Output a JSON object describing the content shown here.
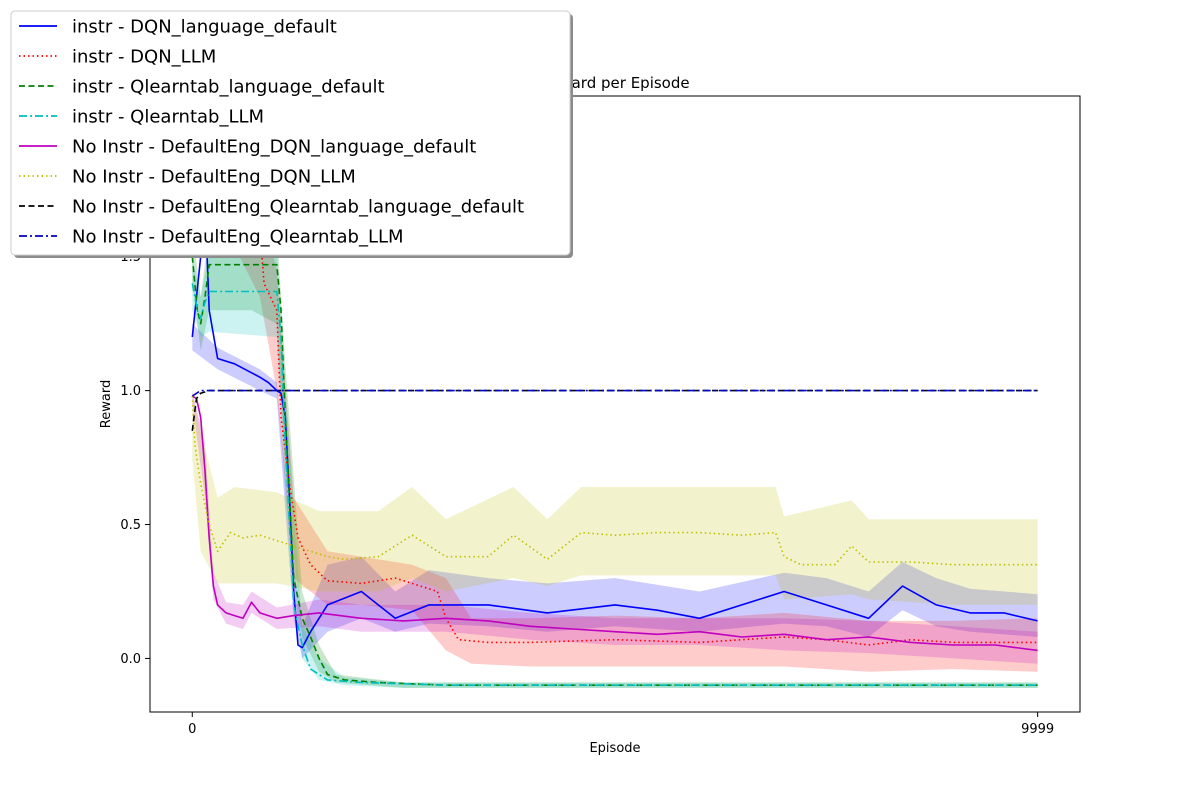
{
  "chart_data": {
    "type": "line",
    "title": "Reward per Episode",
    "xlabel": "Episode",
    "ylabel": "Reward",
    "xlim": [
      -500,
      10500
    ],
    "ylim": [
      -0.2,
      2.1
    ],
    "x_ticks": [
      0,
      9999
    ],
    "y_ticks": [
      0.0,
      0.5,
      1.0,
      1.5
    ],
    "y_tick_labels": [
      "0.0",
      "0.5",
      "1.0",
      "1.5"
    ],
    "grid": false,
    "legend_position": "top-left",
    "series": [
      {
        "name": "instr - DQN_language_default",
        "color": "#0000ff",
        "dash": "solid",
        "points": [
          [
            0,
            1.2
          ],
          [
            100,
            1.5
          ],
          [
            150,
            1.7
          ],
          [
            200,
            1.3
          ],
          [
            300,
            1.12
          ],
          [
            500,
            1.1
          ],
          [
            800,
            1.05
          ],
          [
            900,
            1.03
          ],
          [
            1000,
            1.0
          ],
          [
            1050,
            0.99
          ],
          [
            1100,
            0.9
          ],
          [
            1150,
            0.6
          ],
          [
            1200,
            0.25
          ],
          [
            1250,
            0.05
          ],
          [
            1300,
            0.04
          ],
          [
            1400,
            0.1
          ],
          [
            1600,
            0.2
          ],
          [
            2000,
            0.25
          ],
          [
            2400,
            0.15
          ],
          [
            2800,
            0.2
          ],
          [
            3500,
            0.2
          ],
          [
            4200,
            0.17
          ],
          [
            5000,
            0.2
          ],
          [
            5500,
            0.18
          ],
          [
            6000,
            0.15
          ],
          [
            6500,
            0.2
          ],
          [
            7000,
            0.25
          ],
          [
            7500,
            0.2
          ],
          [
            8000,
            0.15
          ],
          [
            8400,
            0.27
          ],
          [
            8800,
            0.2
          ],
          [
            9200,
            0.17
          ],
          [
            9600,
            0.17
          ],
          [
            9999,
            0.14
          ]
        ],
        "band": [
          [
            0,
            1.15,
            1.25
          ],
          [
            300,
            1.08,
            1.16
          ],
          [
            800,
            1.0,
            1.08
          ],
          [
            1000,
            0.97,
            1.03
          ],
          [
            1200,
            0.15,
            0.35
          ],
          [
            1300,
            0.0,
            0.12
          ],
          [
            1600,
            0.1,
            0.35
          ],
          [
            2000,
            0.15,
            0.38
          ],
          [
            2400,
            0.1,
            0.25
          ],
          [
            2800,
            0.13,
            0.33
          ],
          [
            3500,
            0.12,
            0.3
          ],
          [
            4200,
            0.1,
            0.28
          ],
          [
            5000,
            0.12,
            0.3
          ],
          [
            6000,
            0.1,
            0.25
          ],
          [
            7000,
            0.13,
            0.32
          ],
          [
            7500,
            0.12,
            0.3
          ],
          [
            8000,
            0.08,
            0.25
          ],
          [
            8400,
            0.18,
            0.36
          ],
          [
            8800,
            0.12,
            0.3
          ],
          [
            9200,
            0.1,
            0.26
          ],
          [
            9999,
            0.08,
            0.24
          ]
        ]
      },
      {
        "name": "instr - DQN_LLM",
        "color": "#ff0000",
        "dash": "dotted",
        "points": [
          [
            0,
            1.9
          ],
          [
            500,
            1.85
          ],
          [
            800,
            1.6
          ],
          [
            850,
            1.4
          ],
          [
            1000,
            1.3
          ],
          [
            1050,
            0.9
          ],
          [
            1150,
            0.65
          ],
          [
            1250,
            0.45
          ],
          [
            1400,
            0.35
          ],
          [
            1600,
            0.29
          ],
          [
            2000,
            0.28
          ],
          [
            2400,
            0.3
          ],
          [
            2600,
            0.28
          ],
          [
            2900,
            0.25
          ],
          [
            3000,
            0.15
          ],
          [
            3150,
            0.07
          ],
          [
            3500,
            0.06
          ],
          [
            4000,
            0.06
          ],
          [
            5000,
            0.07
          ],
          [
            6000,
            0.06
          ],
          [
            7000,
            0.08
          ],
          [
            7500,
            0.07
          ],
          [
            8000,
            0.05
          ],
          [
            8500,
            0.07
          ],
          [
            9000,
            0.06
          ],
          [
            9999,
            0.06
          ]
        ],
        "band": [
          [
            0,
            1.85,
            1.95
          ],
          [
            800,
            1.35,
            1.7
          ],
          [
            1000,
            1.0,
            1.45
          ],
          [
            1200,
            0.3,
            0.6
          ],
          [
            1600,
            0.2,
            0.4
          ],
          [
            2000,
            0.2,
            0.38
          ],
          [
            2600,
            0.18,
            0.35
          ],
          [
            3000,
            0.03,
            0.3
          ],
          [
            3300,
            -0.02,
            0.15
          ],
          [
            4000,
            -0.03,
            0.15
          ],
          [
            5000,
            -0.03,
            0.16
          ],
          [
            6000,
            -0.03,
            0.15
          ],
          [
            7000,
            -0.03,
            0.17
          ],
          [
            8000,
            -0.05,
            0.14
          ],
          [
            9000,
            -0.04,
            0.14
          ],
          [
            9999,
            -0.05,
            0.15
          ]
        ]
      },
      {
        "name": "instr - Qlearntab_language_default",
        "color": "#008000",
        "dash": "dashed",
        "points": [
          [
            0,
            1.5
          ],
          [
            60,
            1.3
          ],
          [
            100,
            1.25
          ],
          [
            150,
            1.35
          ],
          [
            200,
            1.47
          ],
          [
            400,
            1.47
          ],
          [
            700,
            1.47
          ],
          [
            1000,
            1.47
          ],
          [
            1050,
            1.3
          ],
          [
            1100,
            0.9
          ],
          [
            1200,
            0.3
          ],
          [
            1300,
            0.15
          ],
          [
            1400,
            0.08
          ],
          [
            1500,
            0.0
          ],
          [
            1600,
            -0.06
          ],
          [
            1800,
            -0.08
          ],
          [
            2200,
            -0.09
          ],
          [
            3000,
            -0.1
          ],
          [
            5000,
            -0.1
          ],
          [
            7000,
            -0.1
          ],
          [
            9999,
            -0.1
          ]
        ],
        "band": [
          [
            0,
            1.4,
            1.6
          ],
          [
            100,
            1.15,
            1.35
          ],
          [
            200,
            1.3,
            1.6
          ],
          [
            700,
            1.3,
            1.6
          ],
          [
            1000,
            1.25,
            1.6
          ],
          [
            1100,
            0.7,
            1.1
          ],
          [
            1300,
            0.08,
            0.25
          ],
          [
            1500,
            -0.05,
            0.05
          ],
          [
            1700,
            -0.09,
            -0.06
          ],
          [
            2500,
            -0.11,
            -0.09
          ],
          [
            9999,
            -0.11,
            -0.09
          ]
        ]
      },
      {
        "name": "instr - Qlearntab_LLM",
        "color": "#00bfbf",
        "dash": "dashdot",
        "points": [
          [
            0,
            1.4
          ],
          [
            60,
            1.3
          ],
          [
            100,
            1.27
          ],
          [
            150,
            1.33
          ],
          [
            200,
            1.37
          ],
          [
            500,
            1.37
          ],
          [
            1000,
            1.37
          ],
          [
            1050,
            1.2
          ],
          [
            1100,
            0.8
          ],
          [
            1200,
            0.2
          ],
          [
            1300,
            0.05
          ],
          [
            1400,
            -0.04
          ],
          [
            1600,
            -0.08
          ],
          [
            2000,
            -0.09
          ],
          [
            3000,
            -0.1
          ],
          [
            5000,
            -0.1
          ],
          [
            9999,
            -0.1
          ]
        ],
        "band": [
          [
            0,
            1.3,
            1.5
          ],
          [
            100,
            1.2,
            1.35
          ],
          [
            200,
            1.22,
            1.52
          ],
          [
            1000,
            1.2,
            1.52
          ],
          [
            1100,
            0.6,
            1.0
          ],
          [
            1300,
            0.0,
            0.12
          ],
          [
            1500,
            -0.08,
            0.0
          ],
          [
            1800,
            -0.1,
            -0.07
          ],
          [
            2500,
            -0.11,
            -0.09
          ],
          [
            9999,
            -0.11,
            -0.09
          ]
        ]
      },
      {
        "name": "No Instr - DefaultEng_DQN_language_default",
        "color": "#bf00bf",
        "dash": "solid",
        "points": [
          [
            0,
            0.98
          ],
          [
            50,
            0.97
          ],
          [
            100,
            0.9
          ],
          [
            150,
            0.7
          ],
          [
            200,
            0.45
          ],
          [
            250,
            0.27
          ],
          [
            300,
            0.2
          ],
          [
            400,
            0.17
          ],
          [
            500,
            0.16
          ],
          [
            600,
            0.15
          ],
          [
            700,
            0.21
          ],
          [
            800,
            0.17
          ],
          [
            900,
            0.16
          ],
          [
            1000,
            0.15
          ],
          [
            1200,
            0.16
          ],
          [
            1500,
            0.17
          ],
          [
            2000,
            0.15
          ],
          [
            2500,
            0.14
          ],
          [
            3000,
            0.15
          ],
          [
            3500,
            0.14
          ],
          [
            4000,
            0.12
          ],
          [
            4500,
            0.11
          ],
          [
            5000,
            0.1
          ],
          [
            5500,
            0.09
          ],
          [
            6000,
            0.1
          ],
          [
            6500,
            0.08
          ],
          [
            7000,
            0.09
          ],
          [
            7500,
            0.07
          ],
          [
            8000,
            0.08
          ],
          [
            8500,
            0.06
          ],
          [
            9000,
            0.05
          ],
          [
            9500,
            0.05
          ],
          [
            9999,
            0.03
          ]
        ],
        "band": [
          [
            0,
            0.95,
            1.0
          ],
          [
            150,
            0.6,
            0.8
          ],
          [
            250,
            0.22,
            0.32
          ],
          [
            400,
            0.13,
            0.21
          ],
          [
            600,
            0.11,
            0.2
          ],
          [
            700,
            0.17,
            0.25
          ],
          [
            1000,
            0.11,
            0.19
          ],
          [
            1500,
            0.12,
            0.22
          ],
          [
            2000,
            0.1,
            0.2
          ],
          [
            3000,
            0.1,
            0.2
          ],
          [
            4000,
            0.07,
            0.17
          ],
          [
            5000,
            0.05,
            0.15
          ],
          [
            6000,
            0.05,
            0.15
          ],
          [
            7000,
            0.03,
            0.15
          ],
          [
            8000,
            0.02,
            0.14
          ],
          [
            9000,
            0.0,
            0.12
          ],
          [
            9999,
            -0.02,
            0.1
          ]
        ]
      },
      {
        "name": "No Instr - DefaultEng_DQN_LLM",
        "color": "#bfbf00",
        "dash": "dotted",
        "points": [
          [
            0,
            0.98
          ],
          [
            30,
            0.8
          ],
          [
            100,
            0.65
          ],
          [
            200,
            0.5
          ],
          [
            300,
            0.4
          ],
          [
            450,
            0.47
          ],
          [
            600,
            0.45
          ],
          [
            800,
            0.46
          ],
          [
            1000,
            0.44
          ],
          [
            1200,
            0.42
          ],
          [
            1400,
            0.4
          ],
          [
            1600,
            0.38
          ],
          [
            1800,
            0.37
          ],
          [
            2200,
            0.38
          ],
          [
            2400,
            0.42
          ],
          [
            2600,
            0.46
          ],
          [
            2800,
            0.42
          ],
          [
            3000,
            0.38
          ],
          [
            3500,
            0.38
          ],
          [
            3800,
            0.46
          ],
          [
            4200,
            0.37
          ],
          [
            4600,
            0.47
          ],
          [
            5000,
            0.46
          ],
          [
            5500,
            0.47
          ],
          [
            6000,
            0.47
          ],
          [
            6500,
            0.46
          ],
          [
            6900,
            0.47
          ],
          [
            7000,
            0.38
          ],
          [
            7200,
            0.35
          ],
          [
            7600,
            0.35
          ],
          [
            7800,
            0.42
          ],
          [
            8000,
            0.36
          ],
          [
            8500,
            0.36
          ],
          [
            9000,
            0.35
          ],
          [
            9999,
            0.35
          ]
        ],
        "band": [
          [
            0,
            0.75,
            1.0
          ],
          [
            100,
            0.4,
            0.85
          ],
          [
            300,
            0.28,
            0.6
          ],
          [
            500,
            0.28,
            0.64
          ],
          [
            1000,
            0.28,
            0.62
          ],
          [
            1500,
            0.25,
            0.55
          ],
          [
            2200,
            0.25,
            0.55
          ],
          [
            2600,
            0.3,
            0.64
          ],
          [
            3000,
            0.25,
            0.52
          ],
          [
            3800,
            0.3,
            0.64
          ],
          [
            4200,
            0.27,
            0.52
          ],
          [
            4600,
            0.31,
            0.64
          ],
          [
            5500,
            0.31,
            0.64
          ],
          [
            6900,
            0.31,
            0.64
          ],
          [
            7000,
            0.22,
            0.53
          ],
          [
            7800,
            0.24,
            0.59
          ],
          [
            8000,
            0.22,
            0.52
          ],
          [
            9000,
            0.2,
            0.52
          ],
          [
            9999,
            0.2,
            0.52
          ]
        ]
      },
      {
        "name": "No Instr - DefaultEng_Qlearntab_language_default",
        "color": "#000000",
        "dash": "dashed",
        "points": [
          [
            0,
            0.85
          ],
          [
            20,
            0.9
          ],
          [
            50,
            0.97
          ],
          [
            100,
            0.99
          ],
          [
            200,
            1.0
          ],
          [
            9999,
            1.0
          ]
        ],
        "band": []
      },
      {
        "name": "No Instr - DefaultEng_Qlearntab_LLM",
        "color": "#0000bf",
        "dash": "dashdot",
        "points": [
          [
            0,
            0.98
          ],
          [
            50,
            0.99
          ],
          [
            100,
            1.0
          ],
          [
            9999,
            1.0
          ]
        ],
        "band": []
      }
    ]
  }
}
